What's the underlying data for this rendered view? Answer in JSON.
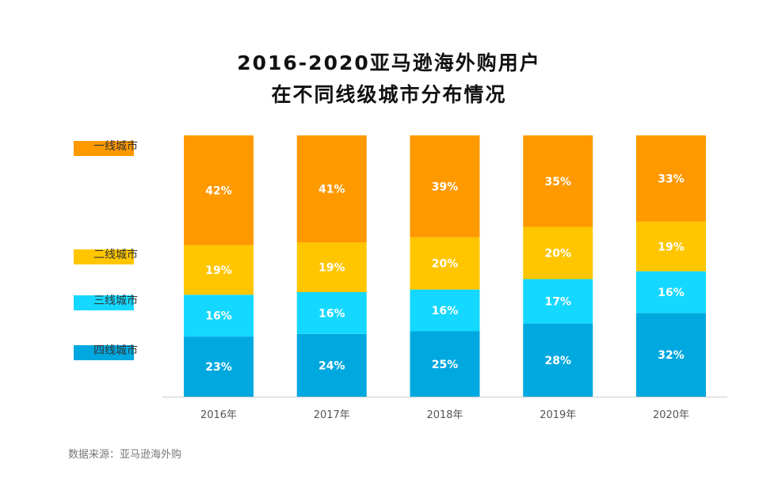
{
  "chart_data": {
    "type": "bar",
    "stacked": true,
    "title_line1": "2016-2020亚马逊海外购用户",
    "title_line2": "在不同线级城市分布情况",
    "categories": [
      "2016年",
      "2017年",
      "2018年",
      "2019年",
      "2020年"
    ],
    "series": [
      {
        "name": "一线城市",
        "color": "#FF9900",
        "values": [
          42,
          41,
          39,
          35,
          33
        ],
        "labels": [
          "42%",
          "41%",
          "39%",
          "35%",
          "33%"
        ]
      },
      {
        "name": "二线城市",
        "color": "#FFC600",
        "values": [
          19,
          19,
          20,
          20,
          19
        ],
        "labels": [
          "19%",
          "19%",
          "20%",
          "20%",
          "19%"
        ]
      },
      {
        "name": "三线城市",
        "color": "#14D8FF",
        "values": [
          16,
          16,
          16,
          17,
          16
        ],
        "labels": [
          "16%",
          "16%",
          "16%",
          "17%",
          "16%"
        ]
      },
      {
        "name": "四线城市",
        "color": "#00A8E0",
        "values": [
          23,
          24,
          25,
          28,
          32
        ],
        "labels": [
          "23%",
          "24%",
          "25%",
          "28%",
          "32%"
        ]
      }
    ],
    "ylim": [
      0,
      100
    ],
    "grid": false,
    "legend_placement": "left",
    "source": "数据来源：亚马逊海外购"
  }
}
